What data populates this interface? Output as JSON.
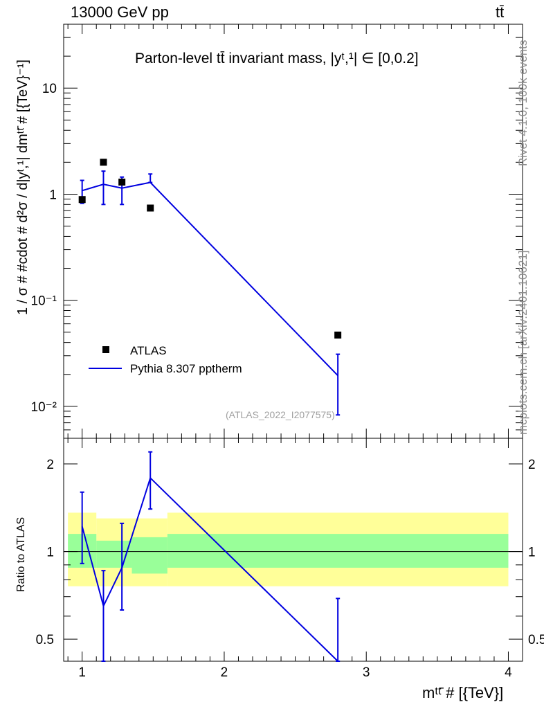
{
  "header": {
    "energy_label": "13000 GeV pp",
    "process_label": "tt̄"
  },
  "side_labels": {
    "rivet": "Rivet 4.1.0,  100k events",
    "source": "mcplots.cern.ch [arXiv:2401.10621]"
  },
  "colors": {
    "mc_line": "#0000e0",
    "band_outer": "#ffff99",
    "band_inner": "#99ff99",
    "data_marker": "#000000"
  },
  "chart_data": [
    {
      "panel": "main",
      "type": "scatter",
      "title": "Parton-level tt̄ invariant mass, |yᵗ,¹| ∈ [0,0.2]",
      "watermark": "(ATLAS_2022_I2077575)",
      "ylabel": "1 / σ # #cdot # d²σ / d|yᵗ,¹| dmᵗᵗ̄ # [{TeV}⁻¹]",
      "xlim": [
        0.87,
        4.1
      ],
      "ylim": [
        0.005,
        40
      ],
      "yscale": "log",
      "yticks": [
        0.01,
        0.1,
        1,
        10
      ],
      "ytick_labels": [
        "10⁻²",
        "10⁻¹",
        "1",
        "10"
      ],
      "legend": [
        "ATLAS",
        "Pythia 8.307 pptherm"
      ],
      "legend_position": "lower-left",
      "series": [
        {
          "name": "ATLAS",
          "kind": "markers",
          "x": [
            1.0,
            1.15,
            1.28,
            1.48,
            2.8
          ],
          "y": [
            0.89,
            2.0,
            1.3,
            0.74,
            0.047
          ]
        },
        {
          "name": "Pythia 8.307 pptherm",
          "kind": "line",
          "x": [
            1.0,
            1.15,
            1.28,
            1.48,
            2.8
          ],
          "y": [
            1.08,
            1.24,
            1.14,
            1.29,
            0.0195
          ],
          "err_low": [
            0.82,
            0.8,
            0.8,
            1.29,
            0.0083
          ],
          "err_high": [
            1.35,
            1.65,
            1.45,
            1.55,
            0.031
          ]
        }
      ]
    },
    {
      "panel": "ratio",
      "type": "line",
      "ylabel": "Ratio to ATLAS",
      "xlabel": "mᵗᵗ̄ # [{TeV}]",
      "xlim": [
        0.87,
        4.1
      ],
      "ylim": [
        0.42,
        2.45
      ],
      "yscale": "log",
      "xticks": [
        1,
        2,
        3,
        4
      ],
      "xtick_labels": [
        "1",
        "2",
        "3",
        "4"
      ],
      "yticks": [
        0.5,
        1,
        2
      ],
      "ytick_labels": [
        "0.5",
        "1",
        "2"
      ],
      "reference_line": 1,
      "bands": [
        {
          "x0": 0.9,
          "x1": 1.1,
          "outer": [
            0.76,
            1.36
          ],
          "inner": [
            0.88,
            1.15
          ]
        },
        {
          "x0": 1.1,
          "x1": 1.35,
          "outer": [
            0.76,
            1.3
          ],
          "inner": [
            0.88,
            1.09
          ]
        },
        {
          "x0": 1.35,
          "x1": 1.6,
          "outer": [
            0.76,
            1.3
          ],
          "inner": [
            0.84,
            1.12
          ]
        },
        {
          "x0": 1.6,
          "x1": 4.0,
          "outer": [
            0.76,
            1.36
          ],
          "inner": [
            0.88,
            1.15
          ]
        }
      ],
      "series": [
        {
          "name": "Pythia 8.307 pptherm / ATLAS",
          "x": [
            1.0,
            1.15,
            1.28,
            1.48,
            2.8
          ],
          "y": [
            1.22,
            0.65,
            0.88,
            1.79,
            0.41
          ],
          "err_low": [
            0.91,
            0.42,
            0.63,
            1.4,
            0.4
          ],
          "err_high": [
            1.6,
            0.86,
            1.25,
            2.2,
            0.69
          ]
        }
      ]
    }
  ]
}
